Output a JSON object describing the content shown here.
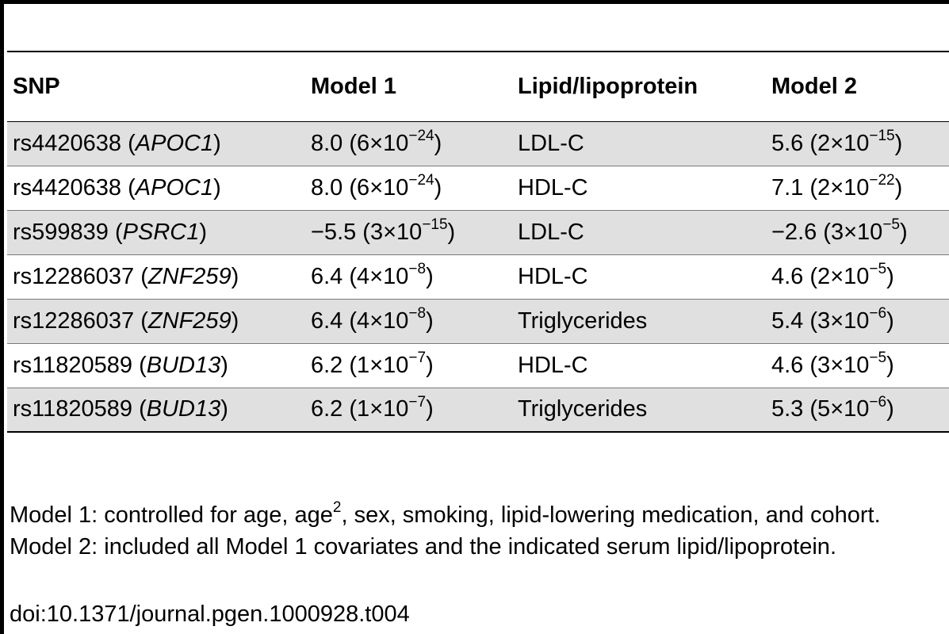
{
  "table": {
    "headers": [
      "SNP",
      "Model 1",
      "Lipid/lipoprotein",
      "Model 2"
    ],
    "rows": [
      {
        "snp_id": "rs4420638",
        "gene": "APOC1",
        "model1": {
          "value": "8.0",
          "mantissa": "6",
          "exponent": "−24"
        },
        "lipid": "LDL-C",
        "model2": {
          "value": "5.6",
          "mantissa": "2",
          "exponent": "−15"
        },
        "shaded": true
      },
      {
        "snp_id": "rs4420638",
        "gene": "APOC1",
        "model1": {
          "value": "8.0",
          "mantissa": "6",
          "exponent": "−24"
        },
        "lipid": "HDL-C",
        "model2": {
          "value": "7.1",
          "mantissa": "2",
          "exponent": "−22"
        },
        "shaded": false
      },
      {
        "snp_id": "rs599839",
        "gene": "PSRC1",
        "model1": {
          "value": "−5.5",
          "mantissa": "3",
          "exponent": "−15"
        },
        "lipid": "LDL-C",
        "model2": {
          "value": "−2.6",
          "mantissa": "3",
          "exponent": "−5"
        },
        "shaded": true
      },
      {
        "snp_id": "rs12286037",
        "gene": "ZNF259",
        "model1": {
          "value": "6.4",
          "mantissa": "4",
          "exponent": "−8"
        },
        "lipid": "HDL-C",
        "model2": {
          "value": "4.6",
          "mantissa": "2",
          "exponent": "−5"
        },
        "shaded": false
      },
      {
        "snp_id": "rs12286037",
        "gene": "ZNF259",
        "model1": {
          "value": "6.4",
          "mantissa": "4",
          "exponent": "−8"
        },
        "lipid": "Triglycerides",
        "model2": {
          "value": "5.4",
          "mantissa": "3",
          "exponent": "−6"
        },
        "shaded": true
      },
      {
        "snp_id": "rs11820589",
        "gene": "BUD13",
        "model1": {
          "value": "6.2",
          "mantissa": "1",
          "exponent": "−7"
        },
        "lipid": "HDL-C",
        "model2": {
          "value": "4.6",
          "mantissa": "3",
          "exponent": "−5"
        },
        "shaded": false
      },
      {
        "snp_id": "rs11820589",
        "gene": "BUD13",
        "model1": {
          "value": "6.2",
          "mantissa": "1",
          "exponent": "−7"
        },
        "lipid": "Triglycerides",
        "model2": {
          "value": "5.3",
          "mantissa": "5",
          "exponent": "−6"
        },
        "shaded": true
      }
    ]
  },
  "footnote": {
    "part1": "Model 1: controlled for age, age",
    "sup": "2",
    "part2": ", sex, smoking, lipid-lowering medication, and cohort. Model 2: included all Model 1 covariates and the indicated serum lipid/lipoprotein."
  },
  "doi": "doi:10.1371/journal.pgen.1000928.t004",
  "colors": {
    "shaded_row": "#e0e0e0",
    "rule": "#000000"
  }
}
